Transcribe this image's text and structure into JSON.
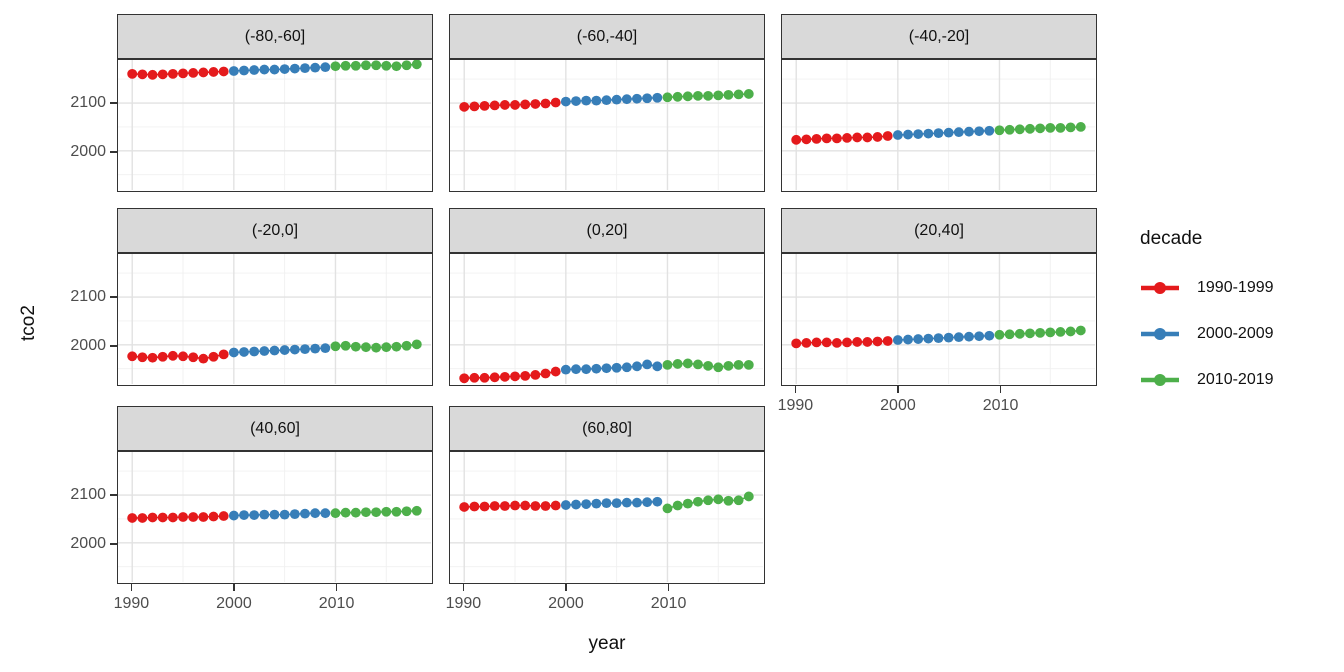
{
  "axes": {
    "x_label": "year",
    "y_label": "tco2",
    "x_ticks": [
      "1990",
      "2000",
      "2010"
    ],
    "y_ticks": [
      "2100",
      "2000"
    ]
  },
  "legend": {
    "title": "decade",
    "entries": [
      {
        "label": "1990-1999",
        "color": "#E41A1C"
      },
      {
        "label": "2000-2009",
        "color": "#377EB8"
      },
      {
        "label": "2010-2019",
        "color": "#4DAF4A"
      }
    ]
  },
  "style_colors": {
    "strip_fill": "#D9D9D9",
    "panel_border": "#333333",
    "grid_major": "#E2E2E2",
    "grid_minor": "#F0F0F0",
    "tick_text": "#4D4D4D"
  },
  "chart_data": {
    "type": "scatter",
    "title": "",
    "xlabel": "year",
    "ylabel": "tco2",
    "group_variable": "decade",
    "legend_position": "right",
    "grid": true,
    "x": [
      1990,
      1991,
      1992,
      1993,
      1994,
      1995,
      1996,
      1997,
      1998,
      1999,
      2000,
      2001,
      2002,
      2003,
      2004,
      2005,
      2006,
      2007,
      2008,
      2009,
      2010,
      2011,
      2012,
      2013,
      2014,
      2015,
      2016,
      2017,
      2018
    ],
    "xlim": [
      1988.6,
      2019.4
    ],
    "ylim": [
      1918,
      2190
    ],
    "x_major_ticks": [
      1990,
      2000,
      2010
    ],
    "x_minor_ticks": [
      1995,
      2005,
      2015
    ],
    "y_major_ticks": [
      2100,
      2000
    ],
    "y_minor_ticks": [
      2150,
      2050,
      1950
    ],
    "decades": [
      {
        "name": "1990-1999",
        "from": 1990,
        "to": 1999,
        "color": "#E41A1C"
      },
      {
        "name": "2000-2009",
        "from": 2000,
        "to": 2009,
        "color": "#377EB8"
      },
      {
        "name": "2010-2019",
        "from": 2010,
        "to": 2018,
        "color": "#4DAF4A"
      }
    ],
    "facets": [
      {
        "label": "(-80,-60]",
        "row": 0,
        "col": 0,
        "values": [
          2161,
          2160,
          2159,
          2160,
          2161,
          2162,
          2163,
          2164,
          2165,
          2166,
          2167,
          2168,
          2169,
          2170,
          2170,
          2171,
          2172,
          2173,
          2174,
          2175,
          2177,
          2178,
          2178,
          2179,
          2179,
          2178,
          2177,
          2179,
          2181
        ]
      },
      {
        "label": "(-60,-40]",
        "row": 0,
        "col": 1,
        "values": [
          2092,
          2093,
          2094,
          2095,
          2096,
          2096,
          2097,
          2098,
          2099,
          2101,
          2103,
          2104,
          2105,
          2105,
          2106,
          2107,
          2108,
          2109,
          2110,
          2111,
          2112,
          2113,
          2114,
          2115,
          2115,
          2116,
          2117,
          2118,
          2119
        ]
      },
      {
        "label": "(-40,-20]",
        "row": 0,
        "col": 2,
        "values": [
          2023,
          2024,
          2025,
          2026,
          2026,
          2027,
          2028,
          2028,
          2029,
          2031,
          2033,
          2034,
          2035,
          2036,
          2037,
          2038,
          2039,
          2040,
          2041,
          2042,
          2043,
          2044,
          2045,
          2046,
          2047,
          2048,
          2048,
          2049,
          2050
        ]
      },
      {
        "label": "(-20,0]",
        "row": 1,
        "col": 0,
        "values": [
          1976,
          1974,
          1973,
          1975,
          1977,
          1976,
          1974,
          1971,
          1975,
          1980,
          1984,
          1985,
          1986,
          1987,
          1988,
          1989,
          1990,
          1991,
          1992,
          1993,
          1997,
          1998,
          1996,
          1995,
          1994,
          1995,
          1996,
          1998,
          2001
        ]
      },
      {
        "label": "(0,20]",
        "row": 1,
        "col": 1,
        "values": [
          1930,
          1931,
          1931,
          1932,
          1933,
          1934,
          1935,
          1937,
          1940,
          1944,
          1948,
          1949,
          1949,
          1950,
          1951,
          1952,
          1953,
          1955,
          1959,
          1955,
          1958,
          1960,
          1961,
          1959,
          1956,
          1953,
          1956,
          1958,
          1958
        ]
      },
      {
        "label": "(20,40]",
        "row": 1,
        "col": 2,
        "values": [
          2003,
          2004,
          2005,
          2005,
          2004,
          2005,
          2006,
          2006,
          2007,
          2008,
          2010,
          2011,
          2012,
          2013,
          2014,
          2015,
          2016,
          2017,
          2018,
          2019,
          2021,
          2022,
          2023,
          2024,
          2025,
          2026,
          2027,
          2028,
          2030
        ]
      },
      {
        "label": "(40,60]",
        "row": 2,
        "col": 0,
        "values": [
          2052,
          2052,
          2053,
          2053,
          2053,
          2054,
          2054,
          2054,
          2055,
          2056,
          2057,
          2058,
          2058,
          2059,
          2059,
          2059,
          2060,
          2061,
          2062,
          2062,
          2062,
          2063,
          2063,
          2064,
          2064,
          2065,
          2065,
          2066,
          2067
        ]
      },
      {
        "label": "(60,80]",
        "row": 2,
        "col": 1,
        "values": [
          2075,
          2076,
          2076,
          2077,
          2077,
          2078,
          2078,
          2077,
          2077,
          2078,
          2079,
          2080,
          2081,
          2082,
          2083,
          2083,
          2084,
          2084,
          2085,
          2086,
          2072,
          2078,
          2082,
          2086,
          2089,
          2091,
          2088,
          2089,
          2097
        ]
      }
    ]
  }
}
